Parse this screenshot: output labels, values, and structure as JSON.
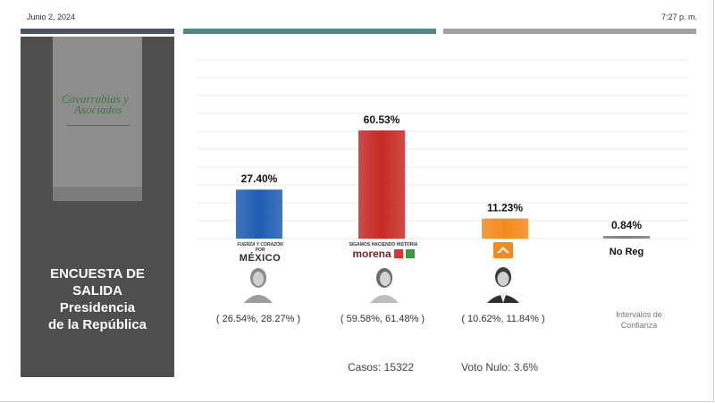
{
  "header": {
    "date": "Junio 2, 2024",
    "time": "7:27 p. m."
  },
  "colors": {
    "bar_left": "#4a5561",
    "bar_mid": "#4f8a84",
    "bar_right": "#9ea2a7",
    "sidebar": "#4e4e4e"
  },
  "logo": {
    "name_line1": "Covarrubias y",
    "name_line2": "Asociados"
  },
  "sidebar": {
    "title_line1": "ENCUESTA DE",
    "title_line2": "SALIDA",
    "title_line3": "Presidencia",
    "title_line4": "de la República"
  },
  "party_logos": {
    "pan_top": "FUERZA Y CORAZÓN POR",
    "pan_bottom": "MÉXICO",
    "morena_top": "SIGAMOS HACIENDO HISTORIA",
    "morena_bottom": "morena",
    "mc_icon": "mc-eagle-icon"
  },
  "chart_data": {
    "type": "bar",
    "categories": [
      "Fuerza y Corazón por México",
      "Sigamos Haciendo Historia",
      "Movimiento Ciudadano",
      "No Reg"
    ],
    "values": [
      27.4,
      60.53,
      11.23,
      0.84
    ],
    "value_labels": [
      "27.40%",
      "60.53%",
      "11.23%",
      "0.84%"
    ],
    "category_labels": [
      "",
      "",
      "",
      "No Reg"
    ],
    "colors": [
      "#1f5db3",
      "#c62b25",
      "#f48a1d",
      "#7f7f7f"
    ],
    "intervals": [
      "( 26.54%, 28.27% )",
      "( 59.58%, 61.48% )",
      "( 10.62%, 11.84% )"
    ],
    "interval_label_line1": "Intervalos de",
    "interval_label_line2": "Confianza",
    "ylim": [
      0,
      100
    ],
    "grid": true
  },
  "footer": {
    "casos": "Casos: 15322",
    "voto_nulo": "Voto Nulo: 3.6%"
  }
}
